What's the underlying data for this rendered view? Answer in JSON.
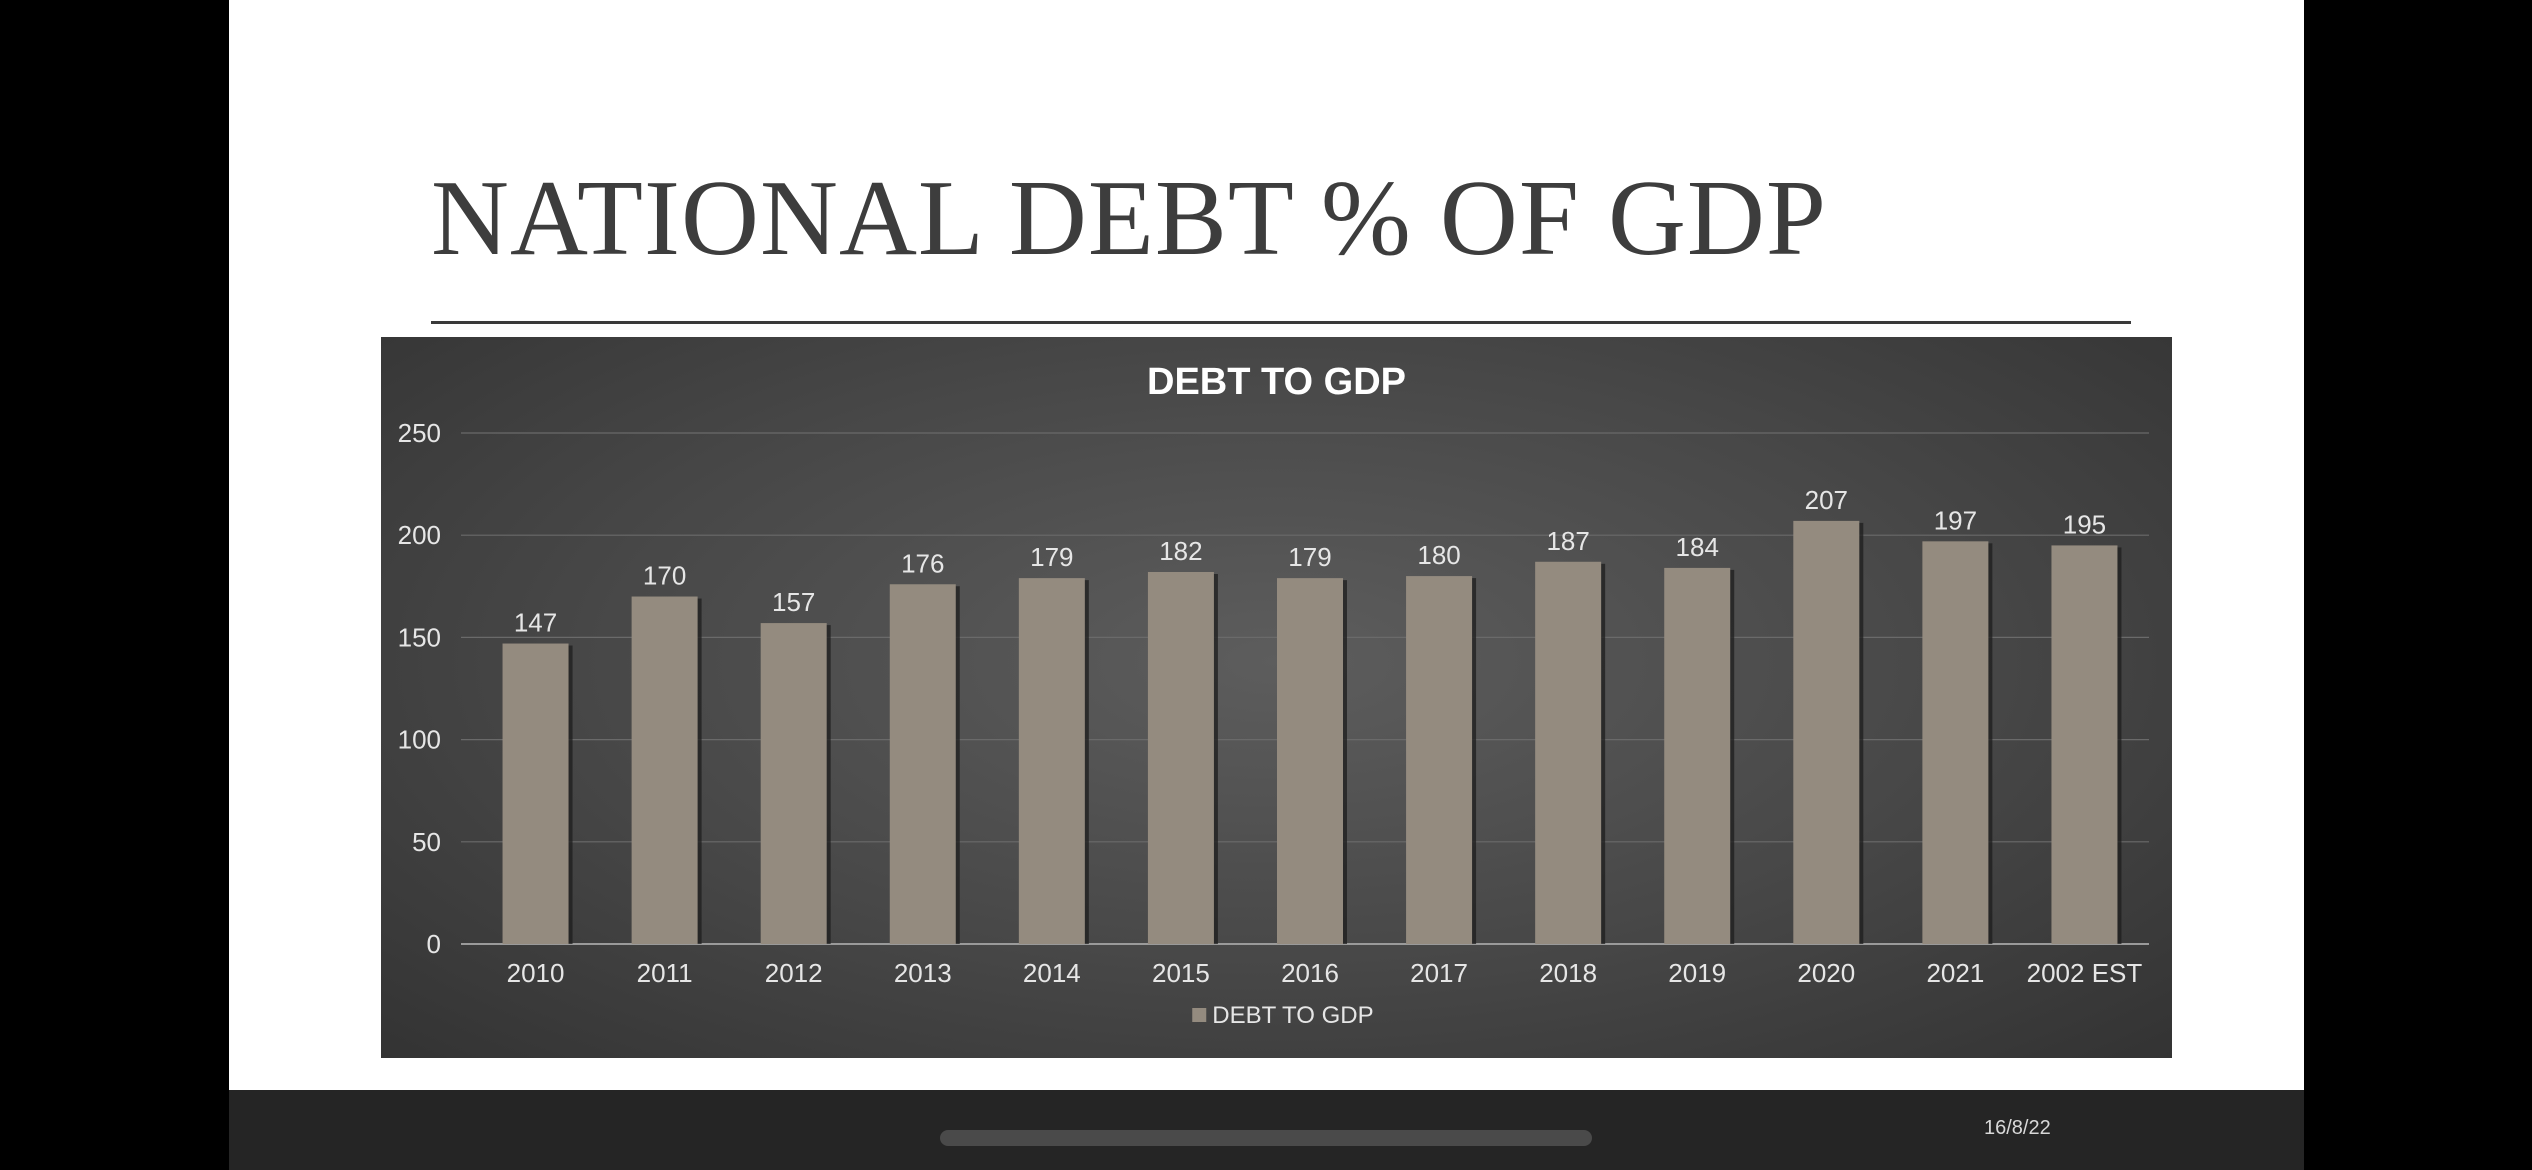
{
  "slide": {
    "title": "NATIONAL DEBT % OF GDP",
    "date": "16/8/22"
  },
  "colors": {
    "bar": "#948b7f",
    "bar_shadow": "#1e1e1e",
    "text": "#e6e6e6",
    "gridline": "#6a6a6a",
    "axis": "#9a9a9a"
  },
  "chart_data": {
    "type": "bar",
    "title": "DEBT TO GDP",
    "categories": [
      "2010",
      "2011",
      "2012",
      "2013",
      "2014",
      "2015",
      "2016",
      "2017",
      "2018",
      "2019",
      "2020",
      "2021",
      "2002 EST"
    ],
    "series": [
      {
        "name": "DEBT TO GDP",
        "values": [
          147,
          170,
          157,
          176,
          179,
          182,
          179,
          180,
          187,
          184,
          207,
          197,
          195
        ]
      }
    ],
    "ylim": [
      0,
      250
    ],
    "yticks": [
      0,
      50,
      100,
      150,
      200,
      250
    ],
    "grid": true,
    "legend": "bottom",
    "data_labels": true
  }
}
